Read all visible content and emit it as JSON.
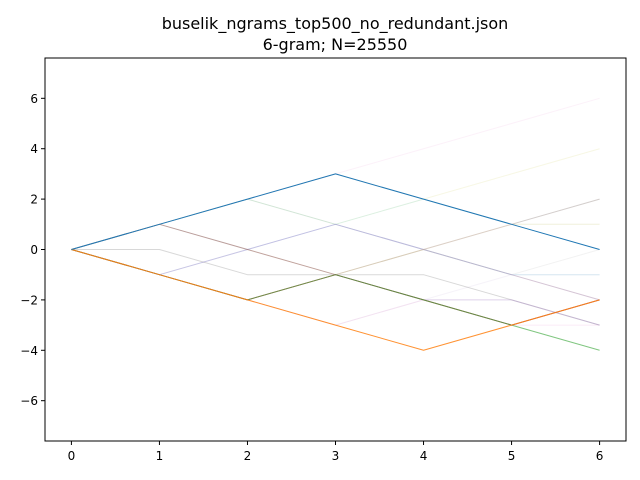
{
  "chart_data": {
    "type": "line",
    "title": "buselik_ngrams_top500_no_redundant.json",
    "subtitle": "6-gram; N=25550",
    "xlabel": "",
    "ylabel": "",
    "xlim": [
      -0.3,
      6.3
    ],
    "ylim": [
      -7.6,
      7.6
    ],
    "x": [
      0,
      1,
      2,
      3,
      4,
      5,
      6
    ],
    "xticks": [
      "0",
      "1",
      "2",
      "3",
      "4",
      "5",
      "6"
    ],
    "yticks": [
      -6,
      -4,
      -2,
      0,
      2,
      4,
      6
    ],
    "ytick_labels": [
      "−6",
      "−4",
      "−2",
      "0",
      "2",
      "4",
      "6"
    ],
    "grid": false,
    "legend": "none",
    "series": [
      {
        "values": [
          0,
          1,
          2,
          3,
          2,
          1,
          0
        ],
        "color": "#1f77b4",
        "opacity": 1.0
      },
      {
        "values": [
          0,
          -1,
          -2,
          -3,
          -4,
          -3,
          -2
        ],
        "color": "#ff7f0e",
        "opacity": 0.85
      },
      {
        "values": [
          0,
          -1,
          -2,
          -1,
          -2,
          -3,
          -4
        ],
        "color": "#2ca02c",
        "opacity": 0.6
      },
      {
        "values": [
          0,
          -1,
          -2,
          -1,
          -2,
          -3,
          -2
        ],
        "color": "#d62728",
        "opacity": 0.5
      },
      {
        "values": [
          0,
          1,
          0,
          -1,
          -2,
          -3,
          -2
        ],
        "color": "#8c564b",
        "opacity": 0.55
      },
      {
        "values": [
          0,
          -1,
          0,
          1,
          0,
          -1,
          -2
        ],
        "color": "#9467bd",
        "opacity": 0.35
      },
      {
        "values": [
          0,
          -1,
          -2,
          -1,
          0,
          1,
          2
        ],
        "color": "#c49c94",
        "opacity": 0.45
      },
      {
        "values": [
          0,
          0,
          -1,
          -1,
          -1,
          -2,
          -3
        ],
        "color": "#7f7f7f",
        "opacity": 0.3
      },
      {
        "values": [
          0,
          -1,
          -2,
          -1,
          -2,
          -2,
          -3
        ],
        "color": "#9467bd",
        "opacity": 0.3
      },
      {
        "values": [
          0,
          -1,
          -2,
          -3,
          -2,
          -3,
          -3
        ],
        "color": "#e377c2",
        "opacity": 0.15
      },
      {
        "values": [
          0,
          1,
          2,
          3,
          4,
          5,
          6
        ],
        "color": "#e377c2",
        "opacity": 0.1
      },
      {
        "values": [
          0,
          1,
          2,
          1,
          2,
          3,
          4
        ],
        "color": "#bcbd22",
        "opacity": 0.12
      },
      {
        "values": [
          0,
          -1,
          0,
          1,
          2,
          1,
          2
        ],
        "color": "#17becf",
        "opacity": 0.12
      },
      {
        "values": [
          0,
          1,
          2,
          1,
          0,
          -1,
          -1
        ],
        "color": "#17becf",
        "opacity": 0.12
      },
      {
        "values": [
          0,
          -1,
          -2,
          -1,
          0,
          -1,
          -2
        ],
        "color": "#bcbd22",
        "opacity": 0.12
      },
      {
        "values": [
          0,
          1,
          2,
          1,
          0,
          -1,
          0
        ],
        "color": "#7f7f7f",
        "opacity": 0.1
      },
      {
        "values": [
          0,
          -1,
          -2,
          -3,
          -2,
          -1,
          -1
        ],
        "color": "#c5b0d5",
        "opacity": 0.15
      },
      {
        "values": [
          0,
          1,
          0,
          1,
          0,
          -1,
          -1
        ],
        "color": "#aec7e8",
        "opacity": 0.15
      },
      {
        "values": [
          0,
          -1,
          -2,
          -1,
          0,
          1,
          1
        ],
        "color": "#98df8a",
        "opacity": 0.15
      },
      {
        "values": [
          0,
          1,
          2,
          3,
          2,
          1,
          1
        ],
        "color": "#ffbb78",
        "opacity": 0.15
      }
    ]
  }
}
